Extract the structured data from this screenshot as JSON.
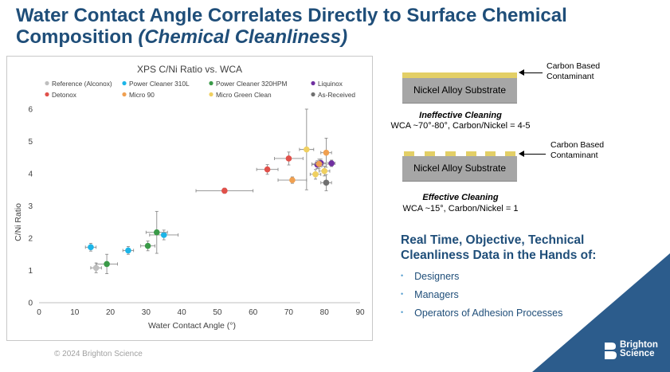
{
  "page": {
    "title_main": "Water Contact Angle Correlates Directly to Surface Chemical Composition",
    "title_sub": "(Chemical Cleanliness)",
    "footer": "© 2024 Brighton Science",
    "logo_line1": "Brighton",
    "logo_line2": "Science"
  },
  "diagram": {
    "top": {
      "substrate_label": "Nickel Alloy Substrate",
      "contaminant_label_1": "Carbon Based",
      "contaminant_label_2": "Contaminant",
      "caption_title": "Ineffective Cleaning",
      "caption_desc": "WCA ~70°-80°, Carbon/Nickel = 4-5"
    },
    "bottom": {
      "substrate_label": "Nickel Alloy Substrate",
      "contaminant_label_1": "Carbon Based",
      "contaminant_label_2": "Contaminant",
      "caption_title": "Effective Cleaning",
      "caption_desc": "WCA ~15°, Carbon/Nickel = 1"
    },
    "colors": {
      "substrate": "#a6a6a6",
      "contaminant": "#e3cf66"
    }
  },
  "callout": {
    "heading_line1": "Real Time, Objective, Technical",
    "heading_line2": "Cleanliness Data in the Hands of:",
    "items": [
      "Designers",
      "Managers",
      "Operators of Adhesion Processes"
    ]
  },
  "chart_data": {
    "type": "scatter",
    "title": "XPS C/Ni Ratio vs. WCA",
    "xlabel": "Water Contact Angle (°)",
    "ylabel": "C/Ni Ratio",
    "xlim": [
      0,
      90
    ],
    "ylim": [
      0,
      6
    ],
    "xticks": [
      0,
      10,
      20,
      30,
      40,
      50,
      60,
      70,
      80,
      90
    ],
    "yticks": [
      0,
      1,
      2,
      3,
      4,
      5,
      6
    ],
    "grid": false,
    "legend_position": "top",
    "series": [
      {
        "name": "Reference (Alconox)",
        "color": "#bfbfbf",
        "points": [
          {
            "x": 16,
            "y": 1.08,
            "xerr": 1.5,
            "yerr": 0.15
          }
        ]
      },
      {
        "name": "Power Cleaner 310L",
        "color": "#1cb5e8",
        "points": [
          {
            "x": 14.5,
            "y": 1.72,
            "xerr": 1.5,
            "yerr": 0.12
          },
          {
            "x": 25,
            "y": 1.62,
            "xerr": 1.5,
            "yerr": 0.12
          },
          {
            "x": 35,
            "y": 2.1,
            "xerr": 4,
            "yerr": 0.15
          }
        ]
      },
      {
        "name": "Power Cleaner 320HPM",
        "color": "#3a9a48",
        "points": [
          {
            "x": 19,
            "y": 1.2,
            "xerr": 3,
            "yerr": 0.3
          },
          {
            "x": 30.5,
            "y": 1.76,
            "xerr": 2,
            "yerr": 0.15
          },
          {
            "x": 33,
            "y": 2.18,
            "xerr": 3,
            "yerr": 0.65
          }
        ]
      },
      {
        "name": "Liquinox",
        "color": "#7030a0",
        "points": [
          {
            "x": 78,
            "y": 4.28,
            "xerr": 1.5,
            "yerr": 0.12
          },
          {
            "x": 79,
            "y": 4.33,
            "xerr": 1.5,
            "yerr": 0.12
          },
          {
            "x": 82,
            "y": 4.32,
            "xerr": 1,
            "yerr": 0.1
          }
        ]
      },
      {
        "name": "Detonox",
        "color": "#e0504a",
        "points": [
          {
            "x": 52,
            "y": 3.47,
            "xerr": 8,
            "yerr": 0.08
          },
          {
            "x": 64,
            "y": 4.13,
            "xerr": 3,
            "yerr": 0.15
          },
          {
            "x": 70,
            "y": 4.47,
            "xerr": 4,
            "yerr": 0.2
          }
        ]
      },
      {
        "name": "Micro 90",
        "color": "#f0a050",
        "points": [
          {
            "x": 71,
            "y": 3.8,
            "xerr": 4,
            "yerr": 0.1
          },
          {
            "x": 78.5,
            "y": 4.3,
            "xerr": 2,
            "yerr": 0.15
          },
          {
            "x": 80.5,
            "y": 4.65,
            "xerr": 1.5,
            "yerr": 0.45
          }
        ]
      },
      {
        "name": "Micro Green Clean",
        "color": "#f0d060",
        "points": [
          {
            "x": 75,
            "y": 4.75,
            "xerr": 2,
            "yerr": 1.25
          },
          {
            "x": 77.5,
            "y": 3.98,
            "xerr": 1.5,
            "yerr": 0.15
          },
          {
            "x": 80,
            "y": 4.08,
            "xerr": 1.5,
            "yerr": 0.15
          }
        ]
      },
      {
        "name": "As-Received",
        "color": "#707070",
        "points": [
          {
            "x": 80.5,
            "y": 3.72,
            "xerr": 1.5,
            "yerr": 0.25
          }
        ]
      }
    ]
  }
}
